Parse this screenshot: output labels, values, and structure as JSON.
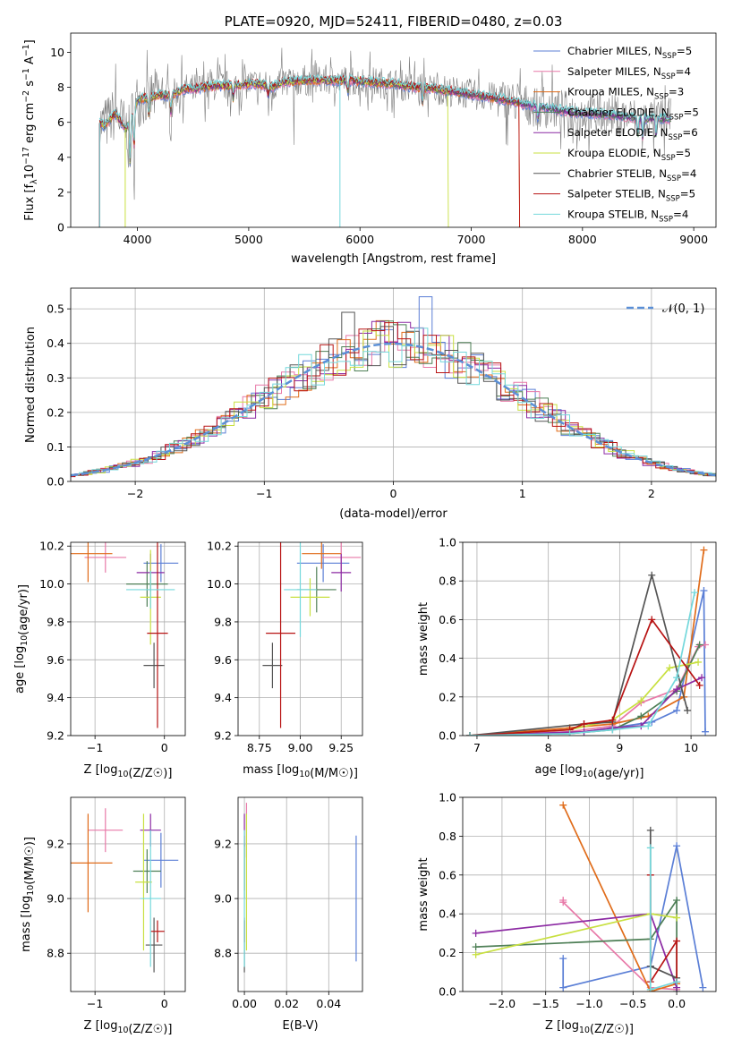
{
  "colors": [
    "#5b7fd6",
    "#e879a8",
    "#e06c1a",
    "#4e7f56",
    "#8c2aa3",
    "#c8e040",
    "#555555",
    "#b81414",
    "#74d8dc"
  ],
  "chart_data": [
    {
      "id": "spectrum",
      "type": "line",
      "title": "PLATE=0920, MJD=52411, FIBERID=0480, z=0.03",
      "xlabel": "wavelength [Angstrom, rest frame]",
      "ylabel": "Flux [f_λ10^-17 erg cm^-2 s^-1 A^-1]",
      "xlim": [
        3400,
        9200
      ],
      "ylim": [
        0,
        11.1
      ],
      "xticks": [
        4000,
        5000,
        6000,
        7000,
        8000,
        9000
      ],
      "yticks": [
        0,
        2,
        4,
        6,
        8,
        10
      ],
      "legend_position": "top-right",
      "legend": [
        "Chabrier MILES, N_SSP=5",
        "Salpeter MILES, N_SSP=4",
        "Kroupa MILES, N_SSP=3",
        "Chabrier ELODIE, N_SSP=5",
        "Salpeter ELODIE, N_SSP=6",
        "Kroupa ELODIE, N_SSP=5",
        "Chabrier STELIB, N_SSP=4",
        "Salpeter STELIB, N_SSP=5",
        "Kroupa STELIB, N_SSP=4"
      ],
      "continuum_points": [
        [
          3650,
          6.0
        ],
        [
          3700,
          5.8
        ],
        [
          3800,
          6.5
        ],
        [
          3900,
          5.6
        ],
        [
          4000,
          7.3
        ],
        [
          4100,
          7.4
        ],
        [
          4200,
          7.6
        ],
        [
          4300,
          7.5
        ],
        [
          4400,
          7.9
        ],
        [
          4500,
          7.9
        ],
        [
          4600,
          8.0
        ],
        [
          4700,
          8.1
        ],
        [
          4800,
          8.1
        ],
        [
          4900,
          8.1
        ],
        [
          5000,
          8.2
        ],
        [
          5100,
          8.2
        ],
        [
          5200,
          8.0
        ],
        [
          5300,
          8.3
        ],
        [
          5500,
          8.4
        ],
        [
          5700,
          8.4
        ],
        [
          5900,
          8.4
        ],
        [
          6100,
          8.3
        ],
        [
          6300,
          8.2
        ],
        [
          6500,
          8.0
        ],
        [
          6700,
          7.9
        ],
        [
          6900,
          7.7
        ],
        [
          7100,
          7.5
        ],
        [
          7300,
          7.3
        ],
        [
          7500,
          7.0
        ],
        [
          7700,
          6.8
        ],
        [
          7900,
          6.6
        ],
        [
          8100,
          6.5
        ],
        [
          8300,
          6.4
        ],
        [
          8500,
          6.2
        ],
        [
          8700,
          6.2
        ],
        [
          8800,
          6.2
        ]
      ]
    },
    {
      "id": "residuals",
      "type": "bar",
      "xlabel": "(data-model)/error",
      "ylabel": "Normed distribution",
      "xlim": [
        -2.5,
        2.5
      ],
      "ylim": [
        0,
        0.56
      ],
      "xticks": [
        -2,
        -1,
        0,
        1,
        2
      ],
      "yticks": [
        0.0,
        0.1,
        0.2,
        0.3,
        0.4,
        0.5
      ],
      "legend_position": "top-right",
      "legend": [
        "𝒩(0, 1)"
      ],
      "reference_curve": "normal(0,1)"
    },
    {
      "id": "age-vs-Z",
      "type": "scatter",
      "xlabel": "Z [log10(Z/Z☉)]",
      "ylabel": "age  [log10(age/yr)]",
      "xlim": [
        -1.35,
        0.3
      ],
      "ylim": [
        9.2,
        10.22
      ],
      "xticks": [
        -1,
        0
      ],
      "yticks": [
        9.2,
        9.4,
        9.6,
        9.8,
        10.0,
        10.2
      ],
      "points": [
        {
          "x": -0.05,
          "y": 10.11,
          "xerr": 0.25,
          "yerr": 0.1
        },
        {
          "x": -0.85,
          "y": 10.14,
          "xerr": 0.3,
          "yerr": 0.08
        },
        {
          "x": -1.1,
          "y": 10.16,
          "xerr": 0.35,
          "yerr": 0.15
        },
        {
          "x": -0.25,
          "y": 10.0,
          "xerr": 0.3,
          "yerr": 0.12
        },
        {
          "x": -0.2,
          "y": 10.06,
          "xerr": 0.2,
          "yerr": 0.1
        },
        {
          "x": -0.2,
          "y": 9.93,
          "xerr": 0.15,
          "yerr": 0.25
        },
        {
          "x": -0.15,
          "y": 9.57,
          "xerr": 0.15,
          "yerr": 0.12
        },
        {
          "x": -0.1,
          "y": 9.74,
          "xerr": 0.15,
          "yerr": 0.5
        },
        {
          "x": -0.2,
          "y": 9.97,
          "xerr": 0.35,
          "yerr": 0.1
        }
      ]
    },
    {
      "id": "age-vs-mass",
      "type": "scatter",
      "xlabel": "mass [log10(M/M☉)]",
      "ylabel": "",
      "xlim": [
        8.62,
        9.38
      ],
      "ylim": [
        9.2,
        10.22
      ],
      "xticks": [
        8.75,
        9.0,
        9.25
      ],
      "yticks": [
        9.2,
        9.4,
        9.6,
        9.8,
        10.0,
        10.2
      ],
      "points": [
        {
          "x": 9.14,
          "y": 10.11,
          "xerr": 0.16,
          "yerr": 0.1
        },
        {
          "x": 9.25,
          "y": 10.14,
          "xerr": 0.12,
          "yerr": 0.08
        },
        {
          "x": 9.13,
          "y": 10.16,
          "xerr": 0.12,
          "yerr": 0.08
        },
        {
          "x": 9.1,
          "y": 9.97,
          "xerr": 0.12,
          "yerr": 0.12
        },
        {
          "x": 9.25,
          "y": 10.06,
          "xerr": 0.06,
          "yerr": 0.1
        },
        {
          "x": 9.06,
          "y": 9.93,
          "xerr": 0.12,
          "yerr": 0.1
        },
        {
          "x": 8.83,
          "y": 9.57,
          "xerr": 0.06,
          "yerr": 0.12
        },
        {
          "x": 8.88,
          "y": 9.74,
          "xerr": 0.09,
          "yerr": 0.5
        },
        {
          "x": 9.0,
          "y": 9.97,
          "xerr": 0.1,
          "yerr": 0.25
        }
      ]
    },
    {
      "id": "weight-vs-age",
      "type": "line",
      "xlabel": "age  [log10(age/yr)]",
      "ylabel": "mass weight",
      "xlim": [
        6.8,
        10.35
      ],
      "ylim": [
        0,
        1
      ],
      "xticks": [
        7,
        8,
        9,
        10
      ],
      "yticks": [
        0.0,
        0.2,
        0.4,
        0.6,
        0.8,
        1.0
      ],
      "series": [
        {
          "x": [
            6.9,
            8.3,
            8.9,
            9.45,
            9.8,
            10.18,
            10.2
          ],
          "y": [
            0.0,
            0.01,
            0.04,
            0.07,
            0.13,
            0.75,
            0.02
          ]
        },
        {
          "x": [
            6.9,
            8.3,
            8.9,
            9.3,
            9.8,
            10.1,
            10.2
          ],
          "y": [
            0.0,
            0.02,
            0.05,
            0.17,
            0.24,
            0.46,
            0.47
          ]
        },
        {
          "x": [
            6.9,
            8.3,
            8.9,
            9.4,
            9.9,
            10.18
          ],
          "y": [
            0.0,
            0.04,
            0.06,
            0.1,
            0.2,
            0.96
          ]
        },
        {
          "x": [
            6.9,
            8.3,
            8.9,
            9.3,
            9.8,
            10.12
          ],
          "y": [
            0.0,
            0.01,
            0.03,
            0.1,
            0.23,
            0.47
          ]
        },
        {
          "x": [
            6.9,
            8.5,
            8.9,
            9.3,
            9.8,
            10.15
          ],
          "y": [
            0.0,
            0.02,
            0.04,
            0.05,
            0.24,
            0.3
          ]
        },
        {
          "x": [
            6.9,
            8.3,
            8.9,
            9.3,
            9.7,
            10.1
          ],
          "y": [
            0.0,
            0.03,
            0.08,
            0.18,
            0.35,
            0.38
          ]
        },
        {
          "x": [
            6.9,
            8.5,
            8.9,
            9.45,
            9.95
          ],
          "y": [
            0.0,
            0.06,
            0.07,
            0.83,
            0.13
          ]
        },
        {
          "x": [
            6.9,
            8.3,
            8.5,
            8.9,
            9.45,
            10.12
          ],
          "y": [
            0.0,
            0.03,
            0.06,
            0.08,
            0.6,
            0.26
          ]
        },
        {
          "x": [
            6.9,
            8.3,
            8.9,
            9.4,
            9.8,
            10.05
          ],
          "y": [
            0.0,
            0.01,
            0.03,
            0.05,
            0.3,
            0.74
          ]
        }
      ]
    },
    {
      "id": "mass-vs-Z",
      "type": "scatter",
      "xlabel": "Z [log10(Z/Z☉)]",
      "ylabel": "mass [log10(M/M☉)]",
      "xlim": [
        -1.35,
        0.3
      ],
      "ylim": [
        8.66,
        9.37
      ],
      "xticks": [
        -1,
        0
      ],
      "yticks": [
        8.8,
        9.0,
        9.2
      ],
      "points": [
        {
          "x": -0.05,
          "y": 9.14,
          "xerr": 0.25,
          "yerr": 0.1
        },
        {
          "x": -0.85,
          "y": 9.25,
          "xerr": 0.25,
          "yerr": 0.08
        },
        {
          "x": -1.1,
          "y": 9.13,
          "xerr": 0.35,
          "yerr": 0.18
        },
        {
          "x": -0.25,
          "y": 9.1,
          "xerr": 0.2,
          "yerr": 0.08
        },
        {
          "x": -0.2,
          "y": 9.25,
          "xerr": 0.15,
          "yerr": 0.06
        },
        {
          "x": -0.3,
          "y": 9.06,
          "xerr": 0.12,
          "yerr": 0.25
        },
        {
          "x": -0.15,
          "y": 8.83,
          "xerr": 0.12,
          "yerr": 0.1
        },
        {
          "x": -0.1,
          "y": 8.88,
          "xerr": 0.1,
          "yerr": 0.04
        },
        {
          "x": -0.2,
          "y": 9.0,
          "xerr": 0.15,
          "yerr": 0.25
        }
      ]
    },
    {
      "id": "mass-vs-ebv",
      "type": "scatter",
      "xlabel": "E(B-V)",
      "ylabel": "",
      "xlim": [
        -0.003,
        0.056
      ],
      "ylim": [
        8.66,
        9.37
      ],
      "xticks": [
        0.0,
        0.02,
        0.04
      ],
      "yticks": [
        8.8,
        9.0,
        9.2
      ],
      "points": [
        {
          "x": 0.053,
          "y": 9.0,
          "xerr": 0,
          "yerr": 0.23
        },
        {
          "x": 0.001,
          "y": 9.25,
          "xerr": 0,
          "yerr": 0.1
        },
        {
          "x": 0.0,
          "y": 9.13,
          "xerr": 0,
          "yerr": 0.1
        },
        {
          "x": 0.0,
          "y": 9.1,
          "xerr": 0,
          "yerr": 0.1
        },
        {
          "x": 0.0,
          "y": 9.25,
          "xerr": 0,
          "yerr": 0.06
        },
        {
          "x": 0.001,
          "y": 9.06,
          "xerr": 0,
          "yerr": 0.25
        },
        {
          "x": 0.0,
          "y": 8.83,
          "xerr": 0,
          "yerr": 0.1
        },
        {
          "x": 0.0,
          "y": 8.88,
          "xerr": 0,
          "yerr": 0.04
        },
        {
          "x": 0.0,
          "y": 9.0,
          "xerr": 0,
          "yerr": 0.25
        }
      ]
    },
    {
      "id": "weight-vs-Z",
      "type": "line",
      "xlabel": "Z [log10(Z/Z☉)]",
      "ylabel": "mass weight",
      "xlim": [
        -2.45,
        0.45
      ],
      "ylim": [
        0,
        1
      ],
      "xticks": [
        -2.0,
        -1.5,
        -1.0,
        -0.5,
        0.0
      ],
      "yticks": [
        0.0,
        0.2,
        0.4,
        0.6,
        0.8,
        1.0
      ],
      "series": [
        {
          "x": [
            -1.3,
            -1.3,
            -0.3,
            0.0,
            0.3
          ],
          "y": [
            0.17,
            0.02,
            0.13,
            0.75,
            0.02
          ]
        },
        {
          "x": [
            -1.3,
            -1.3,
            -0.3,
            0.0
          ],
          "y": [
            0.47,
            0.46,
            0.02,
            0.01
          ]
        },
        {
          "x": [
            -1.3,
            -0.3,
            0.0
          ],
          "y": [
            0.96,
            0.0,
            0.04
          ]
        },
        {
          "x": [
            -2.3,
            -0.3,
            0.0,
            0.0
          ],
          "y": [
            0.23,
            0.27,
            0.47,
            0.0
          ]
        },
        {
          "x": [
            -2.3,
            -0.3,
            0.0
          ],
          "y": [
            0.3,
            0.4,
            0.02
          ]
        },
        {
          "x": [
            -2.3,
            -0.3,
            0.0
          ],
          "y": [
            0.19,
            0.4,
            0.38
          ]
        },
        {
          "x": [
            -0.3,
            -0.3,
            0.0
          ],
          "y": [
            0.83,
            0.13,
            0.07
          ]
        },
        {
          "x": [
            -0.3,
            -0.3,
            0.0,
            0.0
          ],
          "y": [
            0.6,
            0.05,
            0.26,
            0.05
          ]
        },
        {
          "x": [
            -0.3,
            -0.3,
            0.0
          ],
          "y": [
            0.74,
            0.01,
            0.05
          ]
        }
      ]
    }
  ]
}
